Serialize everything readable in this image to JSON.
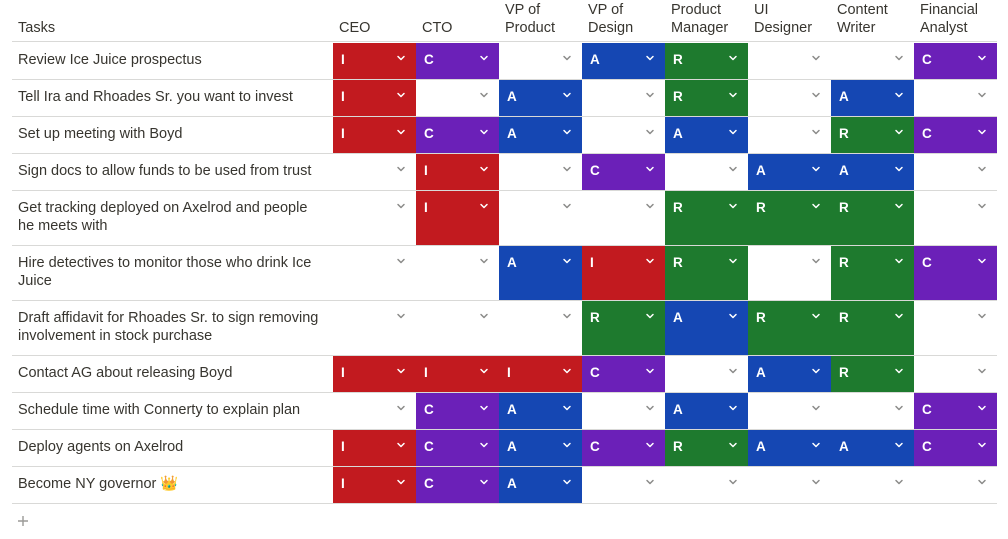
{
  "headers": [
    "Tasks",
    "CEO",
    "CTO",
    "VP of\nProduct",
    "VP of\nDesign",
    "Product\nManager",
    "UI\nDesigner",
    "Content\nWriter",
    "Financial\nAnalyst"
  ],
  "roles": {
    "I": {
      "label": "I",
      "color": "#c21a1f"
    },
    "C": {
      "label": "C",
      "color": "#6b20b8"
    },
    "A": {
      "label": "A",
      "color": "#1547b3"
    },
    "R": {
      "label": "R",
      "color": "#1e7a2e"
    }
  },
  "rows": [
    {
      "task": "Review Ice Juice prospectus",
      "cells": [
        "I",
        "C",
        "",
        "A",
        "R",
        "",
        "",
        "C"
      ]
    },
    {
      "task": "Tell Ira and Rhoades Sr. you want to invest",
      "cells": [
        "I",
        "",
        "A",
        "",
        "R",
        "",
        "A",
        ""
      ]
    },
    {
      "task": "Set up meeting with Boyd",
      "cells": [
        "I",
        "C",
        "A",
        "",
        "A",
        "",
        "R",
        "C"
      ]
    },
    {
      "task": "Sign docs to allow funds to be used from trust",
      "cells": [
        "",
        "I",
        "",
        "C",
        "",
        "A",
        "A",
        ""
      ]
    },
    {
      "task": "Get tracking deployed on Axelrod and people he meets with",
      "cells": [
        "",
        "I",
        "",
        "",
        "R",
        "R",
        "R",
        ""
      ]
    },
    {
      "task": "Hire detectives to monitor those who drink Ice Juice",
      "cells": [
        "",
        "",
        "A",
        "I",
        "R",
        "",
        "R",
        "C"
      ]
    },
    {
      "task": "Draft affidavit for Rhoades Sr. to sign removing involvement in stock purchase",
      "cells": [
        "",
        "",
        "",
        "R",
        "A",
        "R",
        "R",
        ""
      ]
    },
    {
      "task": "Contact AG about releasing Boyd",
      "cells": [
        "I",
        "I",
        "I",
        "C",
        "",
        "A",
        "R",
        ""
      ]
    },
    {
      "task": "Schedule time with Connerty to explain plan",
      "cells": [
        "",
        "C",
        "A",
        "",
        "A",
        "",
        "",
        "C"
      ]
    },
    {
      "task": "Deploy agents on Axelrod",
      "cells": [
        "I",
        "C",
        "A",
        "C",
        "R",
        "A",
        "A",
        "C"
      ]
    },
    {
      "task": "Become NY governor 👑",
      "cells": [
        "I",
        "C",
        "A",
        "",
        "",
        "",
        "",
        ""
      ]
    }
  ]
}
